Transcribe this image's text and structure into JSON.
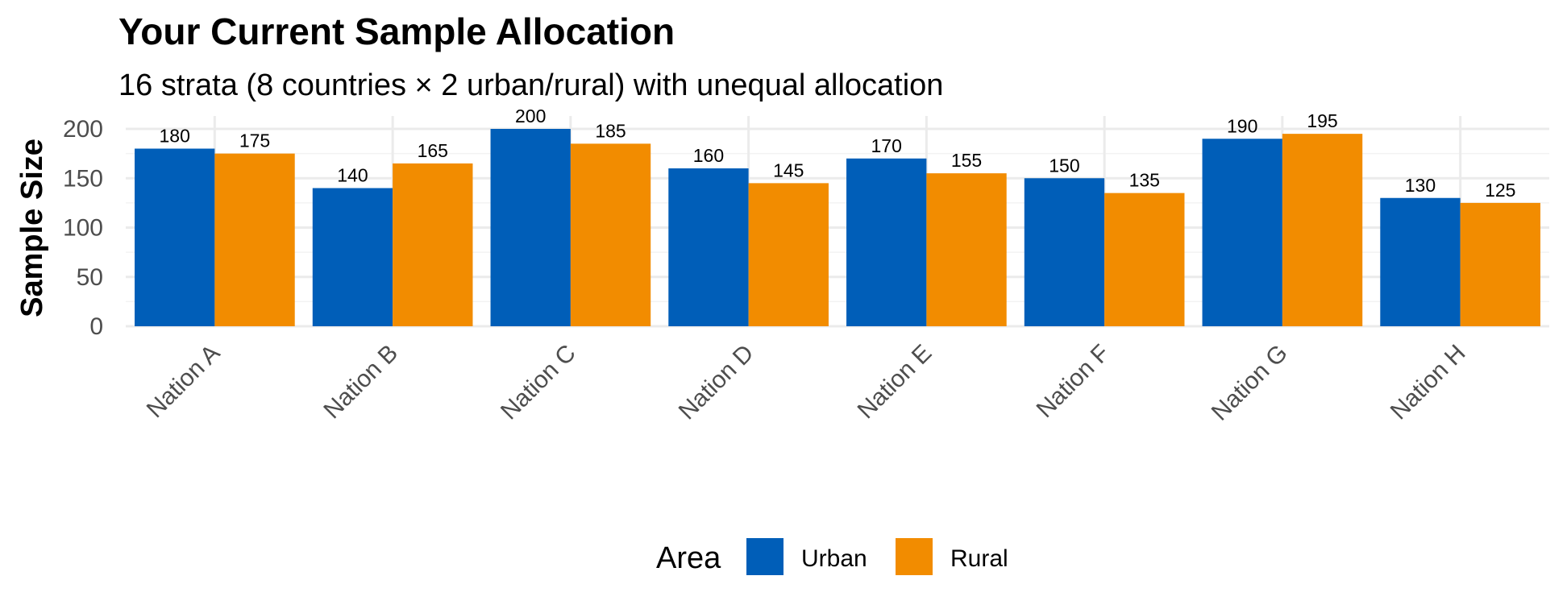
{
  "chart_data": {
    "type": "bar",
    "title": "Your Current Sample Allocation",
    "subtitle": "16 strata (8 countries × 2 urban/rural) with unequal allocation",
    "xlabel": "",
    "ylabel": "Sample Size",
    "ylim": [
      0,
      200
    ],
    "yticks": [
      0,
      50,
      100,
      150,
      200
    ],
    "grid": true,
    "legend_placement": "bottom",
    "legend_title": "Area",
    "categories": [
      "Nation A",
      "Nation B",
      "Nation C",
      "Nation D",
      "Nation E",
      "Nation F",
      "Nation G",
      "Nation H"
    ],
    "series": [
      {
        "name": "Urban",
        "color": "#005EB8",
        "values": [
          180,
          140,
          200,
          160,
          170,
          150,
          190,
          130
        ]
      },
      {
        "name": "Rural",
        "color": "#F28C00",
        "values": [
          175,
          165,
          185,
          145,
          155,
          135,
          195,
          125
        ]
      }
    ]
  }
}
